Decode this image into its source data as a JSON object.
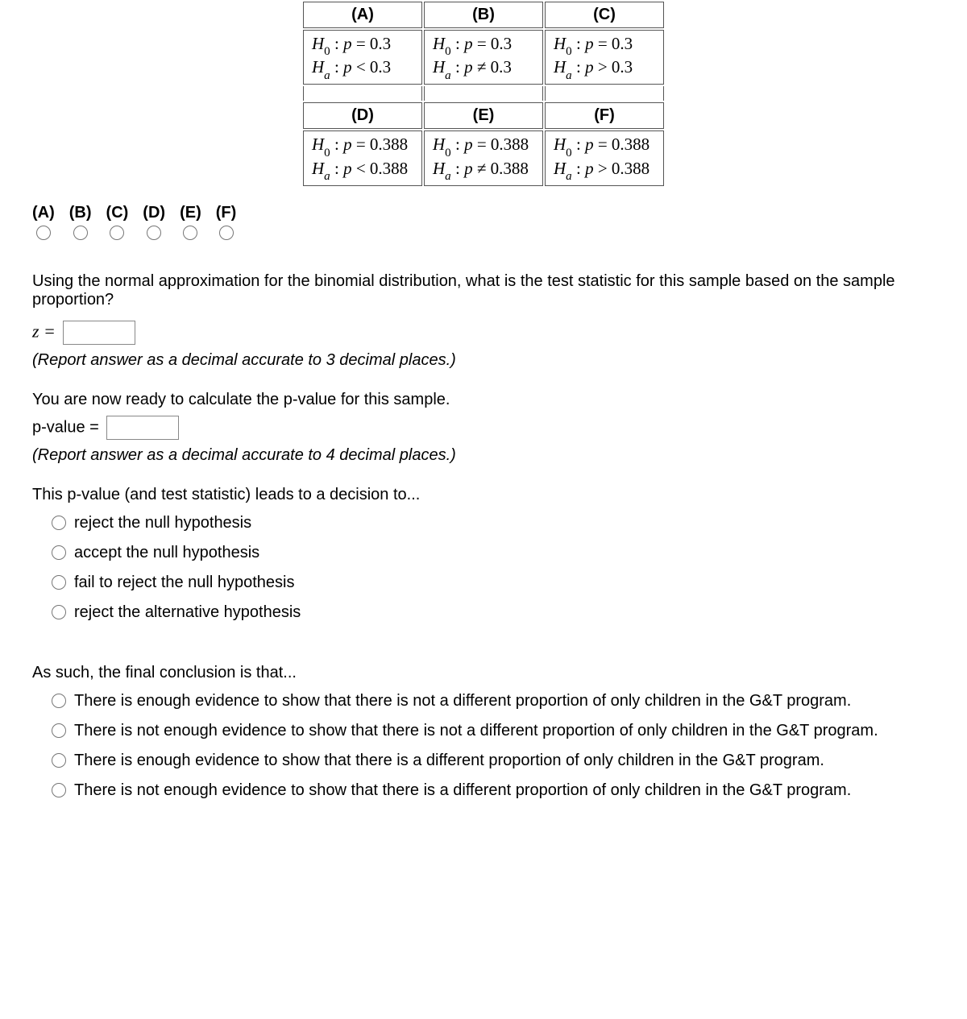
{
  "hypotheses": {
    "row1": [
      {
        "label": "(A)",
        "h0": "H₀ : p = 0.3",
        "ha_rel": "<",
        "ha_val": "0.3"
      },
      {
        "label": "(B)",
        "h0": "H₀ : p = 0.3",
        "ha_rel": "≠",
        "ha_val": "0.3"
      },
      {
        "label": "(C)",
        "h0": "H₀ : p = 0.3",
        "ha_rel": ">",
        "ha_val": "0.3"
      }
    ],
    "row2": [
      {
        "label": "(D)",
        "h0": "H₀ : p = 0.388",
        "ha_rel": "<",
        "ha_val": "0.388"
      },
      {
        "label": "(E)",
        "h0": "H₀ : p = 0.388",
        "ha_rel": "≠",
        "ha_val": "0.388"
      },
      {
        "label": "(F)",
        "h0": "H₀ : p = 0.388",
        "ha_rel": ">",
        "ha_val": "0.388"
      }
    ]
  },
  "choice_labels": [
    "(A)",
    "(B)",
    "(C)",
    "(D)",
    "(E)",
    "(F)"
  ],
  "q_test_stat": "Using the normal approximation for the binomial distribution, what is the test statistic for this sample based on the sample proportion?",
  "z_label": "z =",
  "hint_3dp": "(Report answer as a decimal accurate to 3 decimal places.)",
  "q_pvalue_intro": "You are now ready to calculate the p-value for this sample.",
  "pvalue_label": "p-value =",
  "hint_4dp": "(Report answer as a decimal accurate to 4 decimal places.)",
  "q_decision": "This p-value (and test statistic) leads to a decision to...",
  "decision_options": [
    "reject the null hypothesis",
    "accept the null hypothesis",
    "fail to reject the null hypothesis",
    "reject the alternative hypothesis"
  ],
  "q_conclusion": "As such, the final conclusion is that...",
  "conclusion_options": [
    "There is enough evidence to show that there is not a different proportion of only children in the G&T program.",
    "There is not enough evidence to show that there is not a different proportion of only children in the G&T program.",
    "There is enough evidence to show that there is a different proportion of only children in the G&T program.",
    "There is not enough evidence to show that there is a different proportion of only children in the G&T program."
  ]
}
